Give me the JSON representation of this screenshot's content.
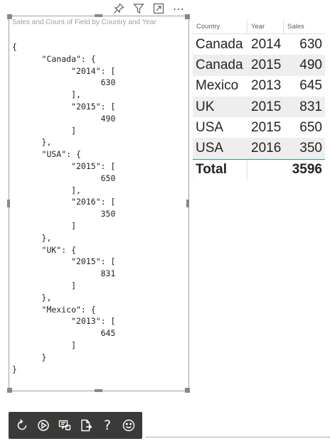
{
  "visual_header": {
    "icons": [
      "pin-icon",
      "filter-icon",
      "focus-mode-icon",
      "more-options-icon"
    ],
    "more_label": "⋯"
  },
  "json_visual": {
    "title": "Sales and Count of Field by Country and Year",
    "content": "{\n      \"Canada\": {\n            \"2014\": [\n                  630\n            ],\n            \"2015\": [\n                  490\n            ]\n      },\n      \"USA\": {\n            \"2015\": [\n                  650\n            ],\n            \"2016\": [\n                  350\n            ]\n      },\n      \"UK\": {\n            \"2015\": [\n                  831\n            ]\n      },\n      \"Mexico\": {\n            \"2013\": [\n                  645\n            ]\n      }\n}"
  },
  "table": {
    "headers": {
      "country": "Country",
      "year": "Year",
      "sales": "Sales"
    },
    "rows": [
      {
        "country": "Canada",
        "year": "2014",
        "sales": "630"
      },
      {
        "country": "Canada",
        "year": "2015",
        "sales": "490"
      },
      {
        "country": "Mexico",
        "year": "2013",
        "sales": "645"
      },
      {
        "country": "UK",
        "year": "2015",
        "sales": "831"
      },
      {
        "country": "USA",
        "year": "2015",
        "sales": "650"
      },
      {
        "country": "USA",
        "year": "2016",
        "sales": "350"
      }
    ],
    "total": {
      "label": "Total",
      "sales": "3596"
    }
  },
  "toolbar": {
    "buttons": [
      "refresh-icon",
      "play-icon",
      "debug-icon",
      "export-icon",
      "help-icon",
      "feedback-icon"
    ],
    "help_glyph": "?"
  },
  "colors": {
    "toolbar_bg": "#3b3a39",
    "total_rule": "#2a9d8f",
    "row_alt": "#eeeeee"
  }
}
